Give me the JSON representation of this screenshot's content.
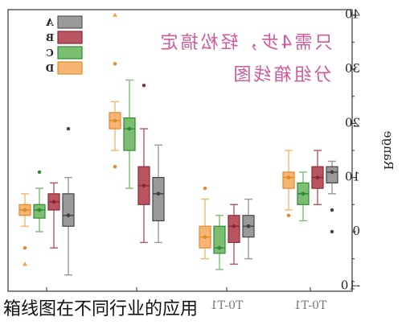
{
  "caption": "箱线图在不同行业的应用",
  "overlay_text": {
    "line1": "只需4步，轻松搞定",
    "line2": "分组箱线图",
    "color": "#d05a9a"
  },
  "chart_data": {
    "type": "box",
    "ylabel": "Range",
    "ylim": [
      -11,
      41
    ],
    "yticks": [
      -10,
      0,
      10,
      20,
      30,
      40
    ],
    "categories": [
      "",
      "",
      "T0-T1",
      "T0-T1"
    ],
    "series": [
      {
        "name": "A",
        "color": "#9a9a9a",
        "boxes": [
          {
            "q1": 1,
            "median": 3,
            "q3": 7,
            "whisker_low": -8,
            "whisker_high": 10,
            "mean": 3,
            "outliers": [
              19
            ]
          },
          {
            "q1": 2,
            "median": 7,
            "q3": 10,
            "whisker_low": -2,
            "whisker_high": 16,
            "mean": 7,
            "outliers": []
          },
          {
            "q1": -1,
            "median": 1,
            "q3": 3,
            "whisker_low": -5,
            "whisker_high": 6,
            "mean": 1,
            "outliers": []
          },
          {
            "q1": 9,
            "median": 11,
            "q3": 12,
            "whisker_low": 7,
            "whisker_high": 13,
            "mean": 11,
            "outliers": [
              4,
              0
            ]
          }
        ]
      },
      {
        "name": "B",
        "color": "#b85560",
        "boxes": [
          {
            "q1": 4,
            "median": 5.5,
            "q3": 7,
            "whisker_low": -3,
            "whisker_high": 9,
            "mean": 5.5,
            "outliers": []
          },
          {
            "q1": 5,
            "median": 8.5,
            "q3": 12,
            "whisker_low": -2,
            "whisker_high": 19,
            "mean": 8.5,
            "outliers": [
              27
            ]
          },
          {
            "q1": -2,
            "median": 1,
            "q3": 3,
            "whisker_low": -6,
            "whisker_high": 5,
            "mean": 1,
            "outliers": []
          },
          {
            "q1": 8,
            "median": 10,
            "q3": 12,
            "whisker_low": 5,
            "whisker_high": 15,
            "mean": 10,
            "outliers": []
          }
        ]
      },
      {
        "name": "C",
        "color": "#7cbf72",
        "boxes": [
          {
            "q1": 2.5,
            "median": 4,
            "q3": 5,
            "whisker_low": 0,
            "whisker_high": 8,
            "mean": 4,
            "outliers": [
              11
            ]
          },
          {
            "q1": 15,
            "median": 19,
            "q3": 21,
            "whisker_low": 8,
            "whisker_high": 28,
            "mean": 19,
            "outliers": []
          },
          {
            "q1": -4,
            "median": -3,
            "q3": 1,
            "whisker_low": -7,
            "whisker_high": 3,
            "mean": -3,
            "outliers": []
          },
          {
            "q1": 5,
            "median": 7,
            "q3": 9,
            "whisker_low": 2,
            "whisker_high": 11,
            "mean": 7,
            "outliers": []
          }
        ]
      },
      {
        "name": "D",
        "color": "#f5b673",
        "boxes": [
          {
            "q1": 3,
            "median": 4,
            "q3": 5,
            "whisker_low": 1,
            "whisker_high": 7,
            "mean": 4,
            "outliers": [
              -3,
              -6
            ]
          },
          {
            "q1": 19,
            "median": 20.5,
            "q3": 22,
            "whisker_low": 15,
            "whisker_high": 24,
            "mean": 20.5,
            "outliers": [
              12,
              31,
              40
            ]
          },
          {
            "q1": -3,
            "median": -1,
            "q3": 1,
            "whisker_low": -5,
            "whisker_high": 6,
            "mean": -1,
            "outliers": [
              8
            ]
          },
          {
            "q1": 8,
            "median": 10,
            "q3": 11,
            "whisker_low": 4,
            "whisker_high": 15,
            "mean": 10,
            "outliers": [
              3
            ]
          }
        ]
      }
    ]
  }
}
